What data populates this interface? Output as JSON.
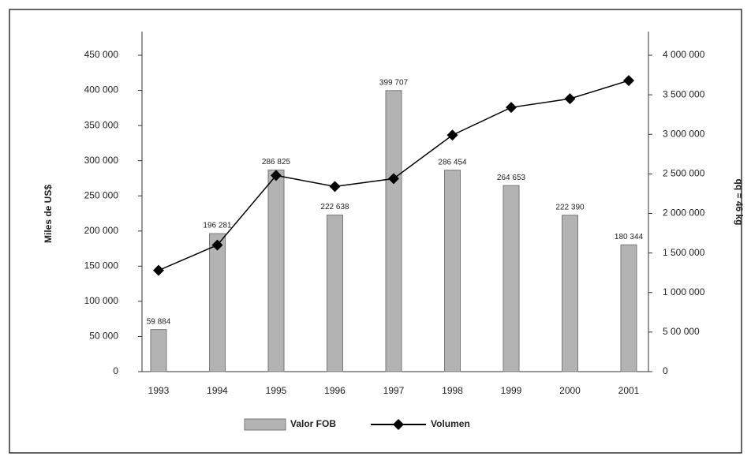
{
  "chart_data": {
    "type": "bar_line",
    "categories": [
      "1993",
      "1994",
      "1995",
      "1996",
      "1997",
      "1998",
      "1999",
      "2000",
      "2001"
    ],
    "ylabel": "Miles de US$",
    "y2label": "qq = 46 kg",
    "ylim": [
      0,
      450000
    ],
    "yticks": [
      0,
      {
        "value": 50000,
        "label": "50 000"
      },
      {
        "value": 100000,
        "label": "100 000"
      },
      {
        "value": 150000,
        "label": "150 000"
      },
      {
        "value": 200000,
        "label": "200 000"
      },
      {
        "value": 250000,
        "label": "250 000"
      },
      {
        "value": 300000,
        "label": "300 000"
      },
      {
        "value": 350000,
        "label": "350 000"
      },
      {
        "value": 400000,
        "label": "400 000"
      },
      {
        "value": 450000,
        "label": "450 000"
      }
    ],
    "y2lim": [
      0,
      4000000
    ],
    "y2ticks": [
      0,
      {
        "value": 500000,
        "label": "5 00 000"
      },
      {
        "value": 1000000,
        "label": "1 000 000"
      },
      {
        "value": 1500000,
        "label": "1 500 000"
      },
      {
        "value": 2000000,
        "label": "2 000 000"
      },
      {
        "value": 2500000,
        "label": "2 500 000"
      },
      {
        "value": 3000000,
        "label": "3 000 000"
      },
      {
        "value": 3500000,
        "label": "3 500 000"
      },
      {
        "value": 4000000,
        "label": "4 000 000"
      }
    ],
    "series": [
      {
        "name": "Valor FOB",
        "type": "bar",
        "color": "#b3b3b3",
        "values": [
          59884,
          196281,
          286825,
          222638,
          399707,
          286454,
          264653,
          222390,
          180344
        ],
        "value_labels": [
          "59 884",
          "196 281",
          "286 825",
          "222 638",
          "399 707",
          "286 454",
          "264 653",
          "222 390",
          "180 344"
        ]
      },
      {
        "name": "Volumen",
        "type": "line",
        "axis": "y2",
        "color": "#000000",
        "values": [
          1280000,
          1600000,
          2480000,
          2340000,
          2440000,
          2990000,
          3340000,
          3450000,
          3680000
        ]
      }
    ]
  }
}
